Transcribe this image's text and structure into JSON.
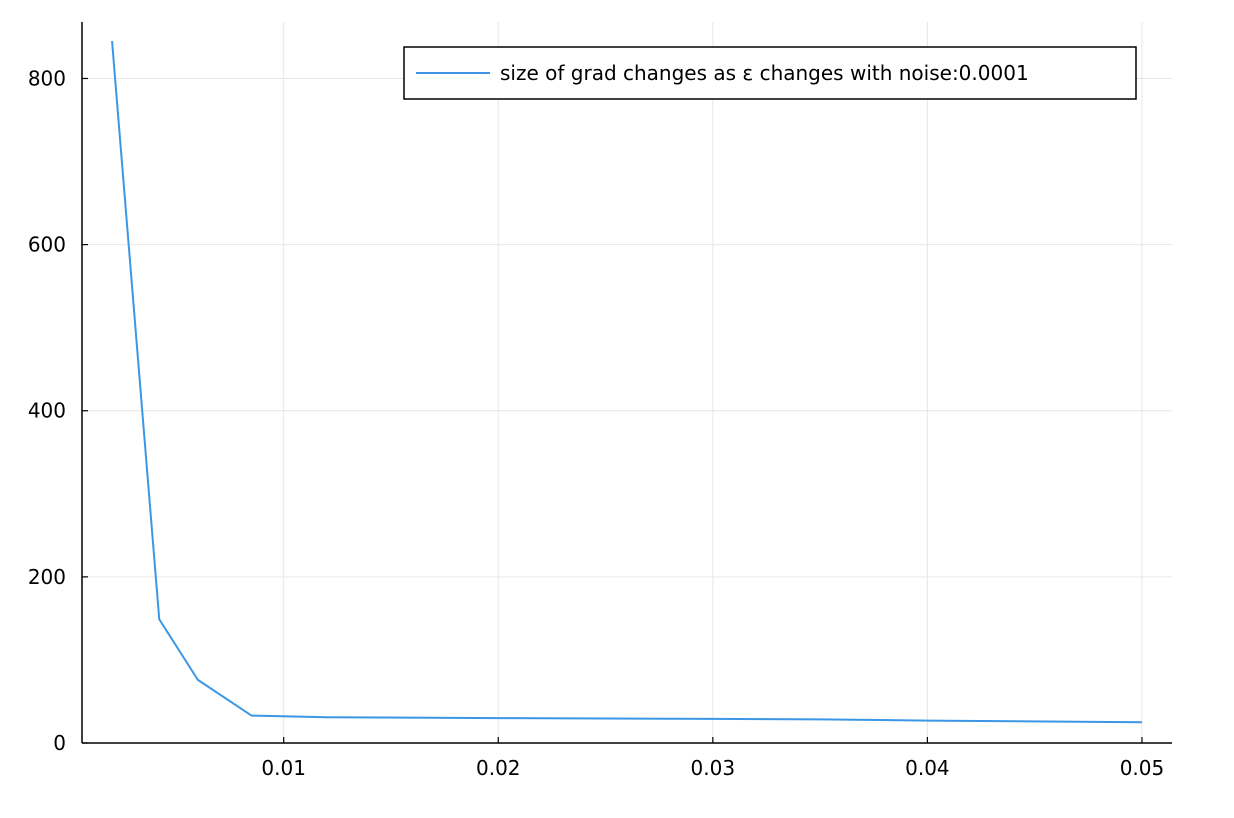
{
  "chart_data": {
    "type": "line",
    "title": "",
    "xlabel": "",
    "ylabel": "",
    "xlim": [
      0.0006,
      0.0514
    ],
    "ylim": [
      0,
      868
    ],
    "xticks": [
      0.01,
      0.02,
      0.03,
      0.04,
      0.05
    ],
    "xtick_labels": [
      "0.01",
      "0.02",
      "0.03",
      "0.04",
      "0.05"
    ],
    "yticks": [
      0,
      200,
      400,
      600,
      800
    ],
    "ytick_labels": [
      "0",
      "200",
      "400",
      "600",
      "800"
    ],
    "grid": true,
    "legend_position": "top-right",
    "series": [
      {
        "name": "size of grad changes as ε changes with noise:0.0001",
        "color": "#3b97e6",
        "x": [
          0.002,
          0.0042,
          0.006,
          0.0085,
          0.012,
          0.02,
          0.03,
          0.035,
          0.04,
          0.05
        ],
        "y": [
          845,
          149,
          76,
          33,
          31,
          30,
          29,
          28.5,
          27,
          25
        ]
      }
    ]
  }
}
